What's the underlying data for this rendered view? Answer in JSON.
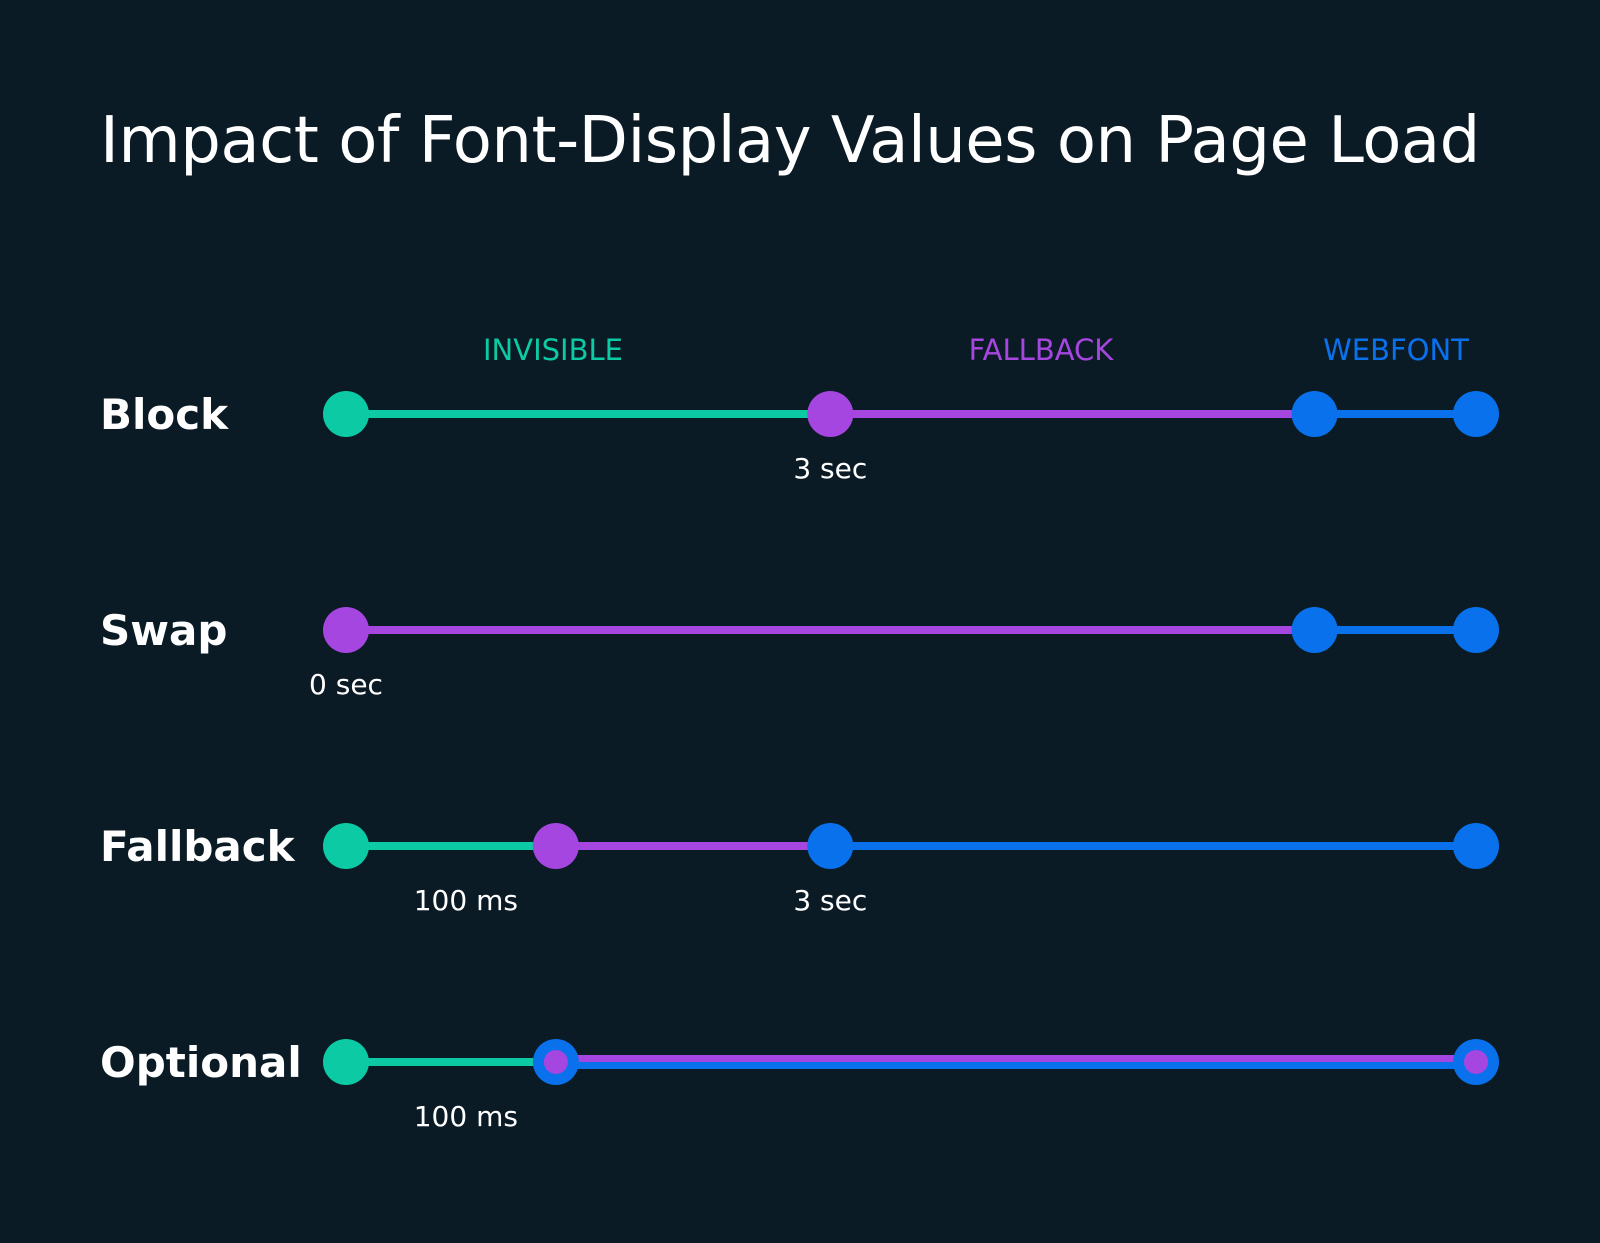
{
  "title": "Impact of Font-Display Values on Page Load",
  "colors": {
    "background": "#0b1b25",
    "invisible": "#0ccaa3",
    "fallback": "#a646e0",
    "webfont": "#0a71ec",
    "text": "#ffffff"
  },
  "legend": [
    {
      "label": "INVISIBLE",
      "phase": "invisible"
    },
    {
      "label": "FALLBACK",
      "phase": "fallback"
    },
    {
      "label": "WEBFONT",
      "phase": "webfont"
    }
  ],
  "rows": [
    {
      "label": "Block",
      "segments": [
        {
          "phase": "invisible",
          "from": 0,
          "to": 3
        },
        {
          "phase": "fallback",
          "from": 3,
          "to": 6
        },
        {
          "phase": "webfont",
          "from": 6,
          "to": 7
        }
      ],
      "markers": [
        {
          "at": 0,
          "phase": "invisible"
        },
        {
          "at": 3,
          "phase": "fallback",
          "label": "3 sec"
        },
        {
          "at": 6,
          "phase": "webfont"
        },
        {
          "at": 7,
          "phase": "webfont"
        }
      ]
    },
    {
      "label": "Swap",
      "segments": [
        {
          "phase": "fallback",
          "from": 0,
          "to": 6
        },
        {
          "phase": "webfont",
          "from": 6,
          "to": 7
        }
      ],
      "markers": [
        {
          "at": 0,
          "phase": "fallback",
          "label": "0 sec"
        },
        {
          "at": 6,
          "phase": "webfont"
        },
        {
          "at": 7,
          "phase": "webfont"
        }
      ]
    },
    {
      "label": "Fallback",
      "segments": [
        {
          "phase": "invisible",
          "from": 0,
          "to": 1.3
        },
        {
          "phase": "fallback",
          "from": 1.3,
          "to": 3
        },
        {
          "phase": "webfont",
          "from": 3,
          "to": 7
        }
      ],
      "markers": [
        {
          "at": 0,
          "phase": "invisible"
        },
        {
          "at": 1.3,
          "phase": "fallback",
          "label": "100 ms"
        },
        {
          "at": 3,
          "phase": "webfont",
          "label": "3 sec"
        },
        {
          "at": 7,
          "phase": "webfont"
        }
      ]
    },
    {
      "label": "Optional",
      "segments": [
        {
          "phase": "invisible",
          "from": 0,
          "to": 1.3
        },
        {
          "phase": "mixed",
          "from": 1.3,
          "to": 7
        }
      ],
      "markers": [
        {
          "at": 0,
          "phase": "invisible"
        },
        {
          "at": 1.3,
          "phase": "mixed",
          "label": "100 ms"
        },
        {
          "at": 7,
          "phase": "mixed"
        }
      ]
    }
  ]
}
